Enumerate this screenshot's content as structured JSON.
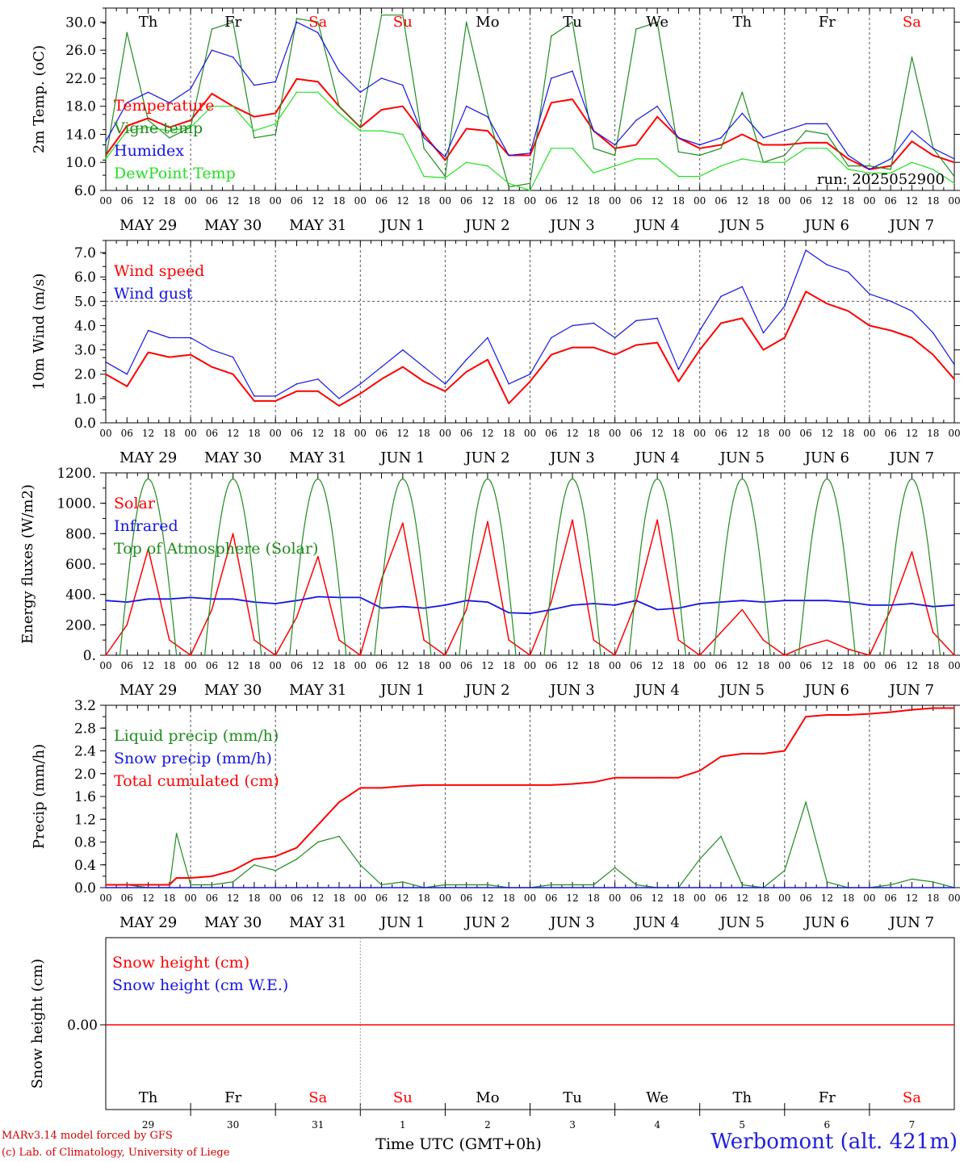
{
  "run_label": "run: 2025052900",
  "station": "Werbomont (alt. 421m)",
  "credit_lines": [
    "MARv3.14 model forced by GFS",
    "(c) Lab. of Climatology, University of Liege"
  ],
  "hour_ticks": [
    "00",
    "06",
    "12",
    "18"
  ],
  "end_tick": "00",
  "day_labels": [
    "MAY 29",
    "MAY 30",
    "MAY 31",
    "JUN  1",
    "JUN  2",
    "JUN  3",
    "JUN  4",
    "JUN  5",
    "JUN  6",
    "JUN  7"
  ],
  "weekdays": [
    "Th",
    "Fr",
    "Sa",
    "Su",
    "Mo",
    "Tu",
    "We",
    "Th",
    "Fr",
    "Sa"
  ],
  "weekend_flags": [
    false,
    false,
    true,
    true,
    false,
    false,
    false,
    false,
    false,
    true
  ],
  "day_numbers": [
    "29",
    "30",
    "31",
    "1",
    "2",
    "3",
    "4",
    "5",
    "6",
    "7"
  ],
  "time_axis_label": "Time UTC (GMT+0h)",
  "colors": {
    "red": "#ff0000",
    "green": "#1e8c1e",
    "blue": "#1414e6",
    "lightgreen": "#22e022",
    "axis": "#000000",
    "grid": "#555555"
  },
  "chart_data": [
    {
      "type": "line",
      "ylabel": "2m Temp. (oC)",
      "ylim": [
        6,
        32
      ],
      "yticks": [
        "6.0",
        "10.0",
        "14.0",
        "18.0",
        "22.0",
        "26.0",
        "30.0"
      ],
      "legend": [
        "Temperature",
        "Vigne temp",
        "Humidex",
        "DewPoint Temp"
      ],
      "x_hours": [
        0,
        6,
        12,
        18,
        24,
        30,
        36,
        42,
        48,
        54,
        60,
        66,
        72,
        78,
        84,
        90,
        96,
        102,
        108,
        114,
        120,
        126,
        132,
        138,
        144,
        150,
        156,
        162,
        168,
        174,
        180,
        186,
        192,
        198,
        204,
        210,
        216,
        222,
        228,
        234,
        240
      ],
      "series": [
        {
          "name": "Temperature",
          "color": "red",
          "values": [
            11,
            15.2,
            16.3,
            15,
            16,
            19.8,
            18,
            16.5,
            17,
            21.9,
            21.5,
            18,
            15,
            17.5,
            18,
            14,
            10.3,
            14.8,
            14.5,
            11,
            11,
            18.5,
            19,
            14.5,
            12,
            12.5,
            16.5,
            13.5,
            12,
            12.5,
            14,
            12.5,
            12.5,
            12.8,
            12.8,
            10.5,
            9,
            9.5,
            13,
            11,
            10
          ]
        },
        {
          "name": "Vigne temp",
          "color": "green",
          "values": [
            10.5,
            28.5,
            16,
            13.5,
            15,
            29,
            30,
            13.5,
            14,
            30.5,
            30,
            18,
            15,
            31,
            31,
            12,
            8,
            30,
            17,
            6.5,
            7,
            28,
            30,
            12,
            11,
            29,
            30,
            11.5,
            11,
            12,
            20,
            10,
            11,
            14.5,
            14,
            9.5,
            9.5,
            9,
            25,
            12,
            8
          ]
        },
        {
          "name": "Humidex",
          "color": "blue",
          "values": [
            13,
            18.5,
            20,
            18.5,
            20.5,
            26,
            25,
            21,
            21.5,
            30,
            28.5,
            23,
            20,
            22,
            21,
            13.5,
            10.8,
            18,
            16.5,
            11,
            11.3,
            22,
            23,
            14.5,
            12.5,
            16,
            18,
            13.5,
            12.5,
            13.5,
            17,
            13.5,
            14.5,
            15.5,
            15.5,
            11,
            9,
            10.5,
            14.5,
            12,
            10.5
          ]
        },
        {
          "name": "DewPoint Temp",
          "color": "lightgreen",
          "values": [
            10.5,
            14.5,
            15,
            14.5,
            15,
            18,
            18,
            14.5,
            15.5,
            20,
            20,
            17,
            14.5,
            14.5,
            14,
            8,
            7.8,
            10,
            9.5,
            7,
            6,
            12,
            12,
            8.5,
            9.5,
            10.5,
            10.5,
            8,
            8,
            9.5,
            10.5,
            10,
            10,
            12,
            12,
            9,
            8.5,
            8.5,
            10,
            9,
            7
          ]
        }
      ]
    },
    {
      "type": "line",
      "ylabel": "10m Wind (m/s)",
      "ylim": [
        0,
        7.5
      ],
      "yticks": [
        "0.0",
        "1.0",
        "2.0",
        "3.0",
        "4.0",
        "5.0",
        "6.0",
        "7.0"
      ],
      "reference_line": 5.0,
      "legend": [
        "Wind speed",
        "Wind gust"
      ],
      "x_hours": [
        0,
        6,
        12,
        18,
        24,
        30,
        36,
        42,
        48,
        54,
        60,
        66,
        72,
        78,
        84,
        90,
        96,
        102,
        108,
        114,
        120,
        126,
        132,
        138,
        144,
        150,
        156,
        162,
        168,
        174,
        180,
        186,
        192,
        198,
        204,
        210,
        216,
        222,
        228,
        234,
        240
      ],
      "series": [
        {
          "name": "Wind speed",
          "color": "red",
          "values": [
            2,
            1.5,
            2.9,
            2.7,
            2.8,
            2.3,
            2,
            0.9,
            0.9,
            1.3,
            1.3,
            0.7,
            1.2,
            1.8,
            2.3,
            1.7,
            1.3,
            2.1,
            2.6,
            0.8,
            1.7,
            2.8,
            3.1,
            3.1,
            2.8,
            3.2,
            3.3,
            1.7,
            3,
            4.1,
            4.3,
            3,
            3.5,
            5.4,
            4.9,
            4.6,
            4,
            3.8,
            3.5,
            2.8,
            1.8
          ]
        },
        {
          "name": "Wind gust",
          "color": "blue",
          "values": [
            2.5,
            2,
            3.8,
            3.5,
            3.5,
            3,
            2.7,
            1.1,
            1.1,
            1.6,
            1.8,
            1,
            1.6,
            2.3,
            3,
            2.3,
            1.6,
            2.6,
            3.5,
            1.6,
            2,
            3.5,
            4,
            4.1,
            3.5,
            4.2,
            4.3,
            2.2,
            3.8,
            5.2,
            5.6,
            3.7,
            4.8,
            7.1,
            6.5,
            6.2,
            5.3,
            5,
            4.6,
            3.7,
            2.4
          ]
        }
      ]
    },
    {
      "type": "line",
      "ylabel": "Energy fluxes (W/m2)",
      "ylim": [
        0,
        1200
      ],
      "yticks": [
        "0.",
        "200.",
        "400.",
        "600.",
        "800.",
        "1000.",
        "1200."
      ],
      "legend": [
        "Solar",
        "Infrared",
        "Top of Atmosphere (Solar)"
      ],
      "x_hours": [
        0,
        6,
        12,
        18,
        24,
        30,
        36,
        42,
        48,
        54,
        60,
        66,
        72,
        78,
        84,
        90,
        96,
        102,
        108,
        114,
        120,
        126,
        132,
        138,
        144,
        150,
        156,
        162,
        168,
        174,
        180,
        186,
        192,
        198,
        204,
        210,
        216,
        222,
        228,
        234,
        240
      ],
      "series": [
        {
          "name": "Solar",
          "color": "red",
          "values": [
            0,
            200,
            700,
            100,
            0,
            300,
            800,
            100,
            0,
            250,
            650,
            100,
            0,
            500,
            870,
            100,
            0,
            300,
            880,
            100,
            0,
            350,
            890,
            100,
            0,
            350,
            890,
            100,
            0,
            150,
            300,
            100,
            0,
            60,
            100,
            40,
            0,
            300,
            680,
            150,
            0
          ]
        },
        {
          "name": "Infrared",
          "color": "blue",
          "values": [
            360,
            350,
            370,
            370,
            380,
            370,
            370,
            350,
            340,
            360,
            385,
            380,
            380,
            310,
            320,
            310,
            330,
            360,
            350,
            280,
            275,
            300,
            330,
            340,
            330,
            360,
            300,
            310,
            340,
            350,
            360,
            350,
            360,
            360,
            360,
            350,
            330,
            330,
            340,
            320,
            330
          ]
        },
        {
          "name": "Top of Atmosphere (Solar)",
          "color": "green",
          "peak": 1160,
          "daylight_hours": [
            4,
            20
          ]
        }
      ]
    },
    {
      "type": "line",
      "ylabel": "Precip (mm/h)",
      "ylim": [
        0,
        3.2
      ],
      "yticks": [
        "0.0",
        "0.4",
        "0.8",
        "1.2",
        "1.6",
        "2.0",
        "2.4",
        "2.8",
        "3.2"
      ],
      "legend": [
        "Liquid precip (mm/h)",
        "Snow precip (mm/h)",
        "Total cumulated (cm)"
      ],
      "x_hours": [
        0,
        6,
        12,
        18,
        20,
        24,
        30,
        36,
        42,
        48,
        54,
        60,
        66,
        72,
        78,
        84,
        90,
        96,
        102,
        108,
        114,
        120,
        126,
        132,
        138,
        144,
        150,
        156,
        162,
        168,
        174,
        180,
        186,
        192,
        198,
        204,
        210,
        216,
        222,
        228,
        234,
        240
      ],
      "series": [
        {
          "name": "Liquid precip (mm/h)",
          "color": "green",
          "values": [
            0.05,
            0.05,
            0,
            0,
            0.95,
            0.05,
            0.05,
            0.1,
            0.4,
            0.3,
            0.5,
            0.8,
            0.9,
            0.4,
            0.05,
            0.1,
            0,
            0.05,
            0.05,
            0.05,
            0,
            0,
            0.05,
            0.05,
            0.05,
            0.35,
            0.05,
            0,
            0,
            0.5,
            0.9,
            0.05,
            0,
            0.3,
            1.5,
            0.1,
            0,
            0,
            0.05,
            0.15,
            0.1,
            0
          ]
        },
        {
          "name": "Snow precip (mm/h)",
          "color": "blue",
          "values": [
            0,
            0,
            0,
            0,
            0,
            0,
            0,
            0,
            0,
            0,
            0,
            0,
            0,
            0,
            0,
            0,
            0,
            0,
            0,
            0,
            0,
            0,
            0,
            0,
            0,
            0,
            0,
            0,
            0,
            0,
            0,
            0,
            0,
            0,
            0,
            0,
            0,
            0,
            0,
            0,
            0,
            0
          ]
        },
        {
          "name": "Total cumulated (cm)",
          "color": "red",
          "values": [
            0.05,
            0.05,
            0.05,
            0.05,
            0.17,
            0.17,
            0.2,
            0.3,
            0.5,
            0.55,
            0.7,
            1.1,
            1.5,
            1.75,
            1.75,
            1.78,
            1.8,
            1.8,
            1.8,
            1.8,
            1.8,
            1.8,
            1.8,
            1.82,
            1.85,
            1.93,
            1.93,
            1.93,
            1.93,
            2.05,
            2.3,
            2.35,
            2.35,
            2.4,
            3.0,
            3.03,
            3.03,
            3.05,
            3.08,
            3.12,
            3.15,
            3.15
          ]
        }
      ]
    },
    {
      "type": "line",
      "ylabel": "Snow height (cm)",
      "yticks": [
        "0.00"
      ],
      "legend": [
        "Snow height (cm)",
        "Snow height (cm W.E.)"
      ],
      "series": [
        {
          "name": "Snow height (cm)",
          "color": "red",
          "values": [
            0,
            0
          ]
        },
        {
          "name": "Snow height (cm W.E.)",
          "color": "blue",
          "values": [
            0,
            0
          ]
        }
      ]
    }
  ]
}
